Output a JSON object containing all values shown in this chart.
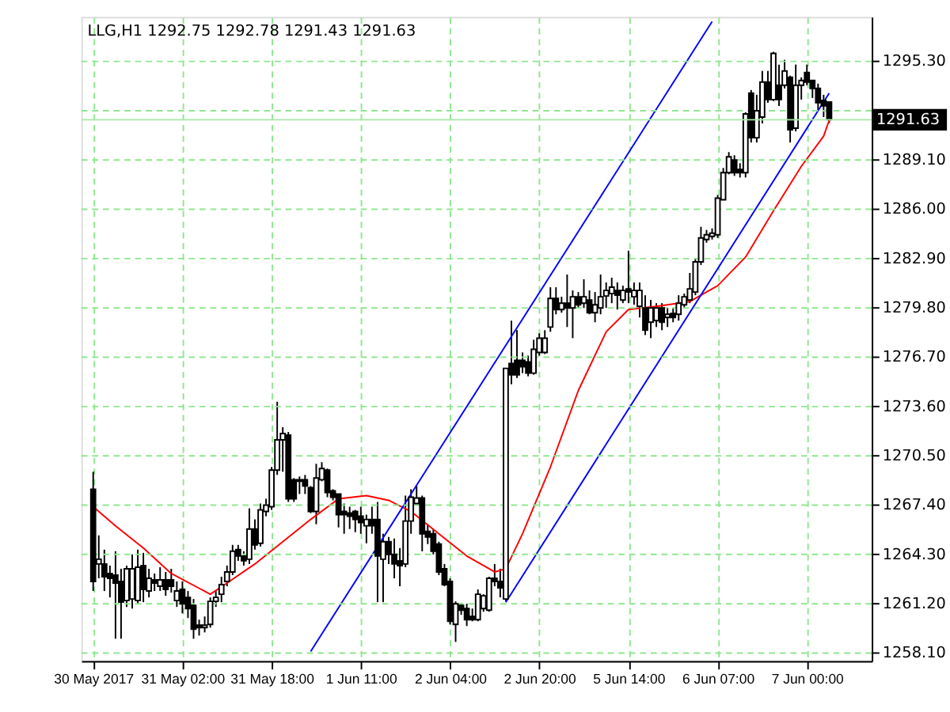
{
  "chart_data": {
    "type": "candlestick",
    "title": "LLG,H1 1292.75 1292.78 1291.43 1291.63",
    "categories": [
      "30 May 2017",
      null,
      null,
      null,
      null,
      null,
      null,
      null,
      null,
      null,
      null,
      null,
      null,
      null,
      null,
      null,
      "31 May 02:00",
      null,
      null,
      null,
      null,
      null,
      null,
      null,
      null,
      null,
      null,
      null,
      null,
      null,
      null,
      null,
      "31 May 18:00",
      null,
      null,
      null,
      null,
      null,
      null,
      null,
      null,
      null,
      null,
      null,
      null,
      null,
      null,
      null,
      "1 Jun 11:00",
      null,
      null,
      null,
      null,
      null,
      null,
      null,
      null,
      null,
      null,
      null,
      null,
      null,
      null,
      null,
      "2 Jun 04:00",
      null,
      null,
      null,
      null,
      null,
      null,
      null,
      null,
      null,
      null,
      null,
      null,
      null,
      null,
      null,
      "2 Jun 20:00",
      null,
      null,
      null,
      null,
      null,
      null,
      null,
      null,
      null,
      null,
      null,
      null,
      null,
      null,
      null,
      "5 Jun 14:00",
      null,
      null,
      null,
      null,
      null,
      null,
      null,
      null,
      null,
      null,
      null,
      null,
      null,
      null,
      null,
      "6 Jun 07:00",
      null,
      null,
      null,
      null,
      null,
      null,
      null,
      null,
      null,
      null,
      null,
      null,
      null,
      null,
      null,
      "7 Jun 00:00",
      null,
      null,
      null,
      null
    ],
    "ohlc": [
      [
        1268.4,
        1269.5,
        1262.0,
        1262.6
      ],
      [
        1263.7,
        1265.5,
        1262.8,
        1264.0
      ],
      [
        1263.7,
        1264.6,
        1262.0,
        1262.9
      ],
      [
        1263.1,
        1263.6,
        1261.6,
        1262.8
      ],
      [
        1263.0,
        1264.5,
        1259.0,
        1262.5
      ],
      [
        1262.6,
        1263.4,
        1259.0,
        1261.3
      ],
      [
        1261.4,
        1263.6,
        1261.0,
        1263.4
      ],
      [
        1261.5,
        1264.3,
        1260.9,
        1263.4
      ],
      [
        1261.4,
        1264.6,
        1261.2,
        1263.5
      ],
      [
        1263.6,
        1264.4,
        1261.3,
        1262.1
      ],
      [
        1262.0,
        1263.4,
        1261.6,
        1262.8
      ],
      [
        1262.7,
        1263.1,
        1262.0,
        1262.5
      ],
      [
        1262.3,
        1263.5,
        1262.0,
        1262.7
      ],
      [
        1262.7,
        1263.2,
        1261.7,
        1262.1
      ],
      [
        1262.7,
        1263.4,
        1261.9,
        1262.3
      ],
      [
        1261.4,
        1262.6,
        1261.0,
        1262.0
      ],
      [
        1262.1,
        1262.6,
        1260.6,
        1261.2
      ],
      [
        1261.6,
        1262.0,
        1260.3,
        1260.9
      ],
      [
        1261.1,
        1261.5,
        1259.0,
        1259.6
      ],
      [
        1259.85,
        1260.2,
        1259.2,
        1259.7
      ],
      [
        1259.7,
        1260.4,
        1259.4,
        1259.85
      ],
      [
        1259.9,
        1261.6,
        1259.7,
        1261.35
      ],
      [
        1261.35,
        1262.0,
        1261.0,
        1261.6
      ],
      [
        1261.8,
        1262.9,
        1261.3,
        1262.4
      ],
      [
        1262.6,
        1263.6,
        1262.3,
        1263.2
      ],
      [
        1263.2,
        1264.9,
        1263.0,
        1264.5
      ],
      [
        1264.6,
        1264.9,
        1263.9,
        1264.2
      ],
      [
        1264.2,
        1264.5,
        1263.6,
        1263.9
      ],
      [
        1264.0,
        1267.2,
        1263.7,
        1265.9
      ],
      [
        1265.9,
        1266.5,
        1264.6,
        1264.9
      ],
      [
        1265.0,
        1267.5,
        1264.8,
        1267.1
      ],
      [
        1267.0,
        1267.8,
        1266.7,
        1267.4
      ],
      [
        1267.3,
        1269.8,
        1267.1,
        1269.6
      ],
      [
        1269.6,
        1273.9,
        1269.3,
        1271.5
      ],
      [
        1271.5,
        1272.3,
        1269.5,
        1271.9
      ],
      [
        1271.8,
        1272.0,
        1267.6,
        1267.8
      ],
      [
        1269.0,
        1269.1,
        1267.6,
        1267.8
      ],
      [
        1269.0,
        1269.2,
        1268.1,
        1268.9
      ],
      [
        1269.0,
        1269.3,
        1268.1,
        1268.6
      ],
      [
        1268.5,
        1268.6,
        1266.9,
        1267.0
      ],
      [
        1267.0,
        1270.0,
        1266.2,
        1269.1
      ],
      [
        1269.0,
        1270.1,
        1268.9,
        1269.7
      ],
      [
        1269.6,
        1269.7,
        1267.9,
        1268.2
      ],
      [
        1268.3,
        1268.4,
        1267.7,
        1267.9
      ],
      [
        1268.1,
        1268.1,
        1266.0,
        1266.8
      ],
      [
        1267.0,
        1267.5,
        1265.6,
        1266.8
      ],
      [
        1266.9,
        1267.3,
        1265.9,
        1266.7
      ],
      [
        1267.0,
        1267.1,
        1265.7,
        1266.5
      ],
      [
        1266.7,
        1267.3,
        1265.6,
        1266.3
      ],
      [
        1266.1,
        1266.8,
        1265.0,
        1266.5
      ],
      [
        1266.5,
        1267.3,
        1265.6,
        1266.1
      ],
      [
        1266.5,
        1267.6,
        1261.3,
        1264.2
      ],
      [
        1264.0,
        1265.6,
        1261.3,
        1265.1
      ],
      [
        1265.1,
        1265.4,
        1263.7,
        1264.3
      ],
      [
        1264.3,
        1265.3,
        1262.8,
        1263.7
      ],
      [
        1263.9,
        1264.7,
        1262.3,
        1263.6
      ],
      [
        1263.7,
        1268.0,
        1263.5,
        1266.4
      ],
      [
        1266.4,
        1268.4,
        1265.6,
        1267.9
      ],
      [
        1267.5,
        1268.6,
        1267.5,
        1267.85
      ],
      [
        1267.85,
        1268.0,
        1264.5,
        1265.6
      ],
      [
        1265.75,
        1266.2,
        1264.95,
        1265.4
      ],
      [
        1265.6,
        1265.9,
        1264.3,
        1264.5
      ],
      [
        1264.95,
        1265.1,
        1263.0,
        1263.2
      ],
      [
        1263.4,
        1263.7,
        1262.3,
        1262.4
      ],
      [
        1262.6,
        1262.8,
        1259.9,
        1260.1
      ],
      [
        1259.9,
        1261.35,
        1258.8,
        1261.2
      ],
      [
        1261.1,
        1261.25,
        1260.5,
        1260.8
      ],
      [
        1260.9,
        1261.2,
        1259.8,
        1260.2
      ],
      [
        1260.4,
        1260.9,
        1260.1,
        1260.2
      ],
      [
        1260.2,
        1262.1,
        1260.1,
        1261.8
      ],
      [
        1260.9,
        1261.8,
        1260.7,
        1261.7
      ],
      [
        1260.8,
        1262.9,
        1260.7,
        1262.8
      ],
      [
        1262.8,
        1263.7,
        1262.3,
        1262.6
      ],
      [
        1262.6,
        1263.4,
        1261.6,
        1262.2
      ],
      [
        1261.5,
        1276.0,
        1261.35,
        1276.0
      ],
      [
        1276.3,
        1279.0,
        1275.0,
        1275.6
      ],
      [
        1276.5,
        1278.4,
        1275.4,
        1275.6
      ],
      [
        1276.5,
        1277.0,
        1275.7,
        1276.1
      ],
      [
        1276.4,
        1276.8,
        1275.5,
        1275.7
      ],
      [
        1275.7,
        1277.8,
        1275.6,
        1277.2
      ],
      [
        1277.0,
        1278.2,
        1276.8,
        1277.9
      ],
      [
        1277.0,
        1278.4,
        1276.9,
        1277.9
      ],
      [
        1278.6,
        1281.1,
        1278.3,
        1280.4
      ],
      [
        1280.4,
        1281.1,
        1279.4,
        1279.7
      ],
      [
        1279.7,
        1280.5,
        1279.5,
        1280.1
      ],
      [
        1280.1,
        1281.9,
        1278.6,
        1279.8
      ],
      [
        1279.8,
        1280.9,
        1277.9,
        1280.5
      ],
      [
        1280.5,
        1280.8,
        1279.8,
        1280.0
      ],
      [
        1280.1,
        1281.6,
        1279.8,
        1280.5
      ],
      [
        1280.3,
        1280.9,
        1279.4,
        1279.5
      ],
      [
        1279.5,
        1280.8,
        1278.9,
        1280.0
      ],
      [
        1279.8,
        1281.9,
        1279.4,
        1280.5
      ],
      [
        1280.55,
        1281.4,
        1279.8,
        1280.9
      ],
      [
        1280.7,
        1281.7,
        1280.1,
        1281.1
      ],
      [
        1280.9,
        1281.4,
        1279.7,
        1280.6
      ],
      [
        1280.3,
        1281.2,
        1280.1,
        1280.9
      ],
      [
        1281.0,
        1283.4,
        1280.1,
        1280.8
      ],
      [
        1280.5,
        1281.4,
        1280.0,
        1280.9
      ],
      [
        1279.9,
        1281.4,
        1279.2,
        1280.9
      ],
      [
        1279.8,
        1280.6,
        1278.1,
        1278.4
      ],
      [
        1278.9,
        1280.3,
        1277.9,
        1279.8
      ],
      [
        1279.0,
        1280.1,
        1278.6,
        1279.8
      ],
      [
        1279.8,
        1280.1,
        1278.4,
        1278.9
      ],
      [
        1279.2,
        1279.8,
        1278.6,
        1279.4
      ],
      [
        1279.45,
        1279.8,
        1278.9,
        1279.2
      ],
      [
        1279.4,
        1280.6,
        1279.0,
        1280.1
      ],
      [
        1280.0,
        1280.7,
        1279.8,
        1280.5
      ],
      [
        1280.3,
        1282.0,
        1280.1,
        1281.0
      ],
      [
        1280.8,
        1282.9,
        1280.6,
        1282.7
      ],
      [
        1282.7,
        1284.9,
        1282.5,
        1284.2
      ],
      [
        1284.1,
        1284.7,
        1283.9,
        1284.4
      ],
      [
        1284.3,
        1284.8,
        1284.1,
        1284.5
      ],
      [
        1284.4,
        1286.9,
        1284.2,
        1286.7
      ],
      [
        1286.6,
        1288.6,
        1286.6,
        1288.3
      ],
      [
        1288.3,
        1289.6,
        1288.2,
        1289.3
      ],
      [
        1289.1,
        1289.4,
        1288.1,
        1288.3
      ],
      [
        1288.5,
        1288.9,
        1288.0,
        1288.3
      ],
      [
        1288.3,
        1292.1,
        1288.0,
        1292.0
      ],
      [
        1293.3,
        1293.5,
        1290.2,
        1290.5
      ],
      [
        1290.5,
        1293.2,
        1290.2,
        1292.2
      ],
      [
        1291.8,
        1294.7,
        1291.4,
        1294.0
      ],
      [
        1294.0,
        1294.7,
        1292.7,
        1292.9
      ],
      [
        1292.9,
        1295.9,
        1292.8,
        1295.8
      ],
      [
        1293.8,
        1295.1,
        1292.5,
        1292.9
      ],
      [
        1293.8,
        1295.4,
        1293.6,
        1294.7
      ],
      [
        1294.3,
        1294.4,
        1290.2,
        1291.0
      ],
      [
        1291.1,
        1295.1,
        1290.9,
        1293.8
      ],
      [
        1293.8,
        1294.3,
        1292.9,
        1294.1
      ],
      [
        1294.6,
        1295.1,
        1293.8,
        1294.0
      ],
      [
        1294.1,
        1294.1,
        1293.0,
        1293.6
      ],
      [
        1293.6,
        1293.9,
        1292.2,
        1292.7
      ],
      [
        1292.85,
        1293.2,
        1291.8,
        1292.5
      ],
      [
        1292.75,
        1292.78,
        1291.43,
        1291.63
      ]
    ],
    "series": [
      {
        "type": "line",
        "color": "#ff0000",
        "values": [
          1267.3,
          null,
          null,
          null,
          1266.1,
          null,
          null,
          null,
          null,
          1264.7,
          null,
          null,
          null,
          null,
          1263.1,
          null,
          null,
          null,
          null,
          null,
          null,
          1261.8,
          null,
          null,
          1262.5,
          null,
          null,
          null,
          null,
          1263.7,
          null,
          null,
          null,
          null,
          1265.1,
          null,
          null,
          null,
          null,
          1266.5,
          null,
          null,
          null,
          null,
          1267.8,
          null,
          null,
          null,
          null,
          1268.0,
          null,
          null,
          null,
          1267.7,
          null,
          null,
          null,
          1267.0,
          null,
          null,
          null,
          null,
          1265.6,
          null,
          null,
          null,
          null,
          1264.2,
          null,
          null,
          null,
          null,
          1263.2,
          null,
          1263.4,
          null,
          null,
          1265.6,
          null,
          null,
          null,
          null,
          1269.8,
          null,
          null,
          null,
          null,
          1274.6,
          null,
          null,
          null,
          null,
          1278.3,
          null,
          null,
          null,
          1279.7,
          null,
          null,
          null,
          null,
          1279.9,
          null,
          null,
          null,
          null,
          null,
          1280.2,
          null,
          null,
          null,
          null,
          1281.2,
          null,
          null,
          null,
          null,
          1283.0,
          null,
          null,
          null,
          null,
          1285.9,
          null,
          null,
          null,
          null,
          1288.7,
          null,
          null,
          null,
          1290.6,
          1291.6
        ]
      },
      {
        "type": "line",
        "color": "#0000ff",
        "values": [
          null,
          null,
          null,
          null,
          null,
          null,
          null,
          null,
          null,
          null,
          null,
          null,
          null,
          null,
          null,
          null,
          null,
          null,
          null,
          null,
          null,
          null,
          null,
          null,
          null,
          null,
          null,
          null,
          null,
          null,
          null,
          null,
          null,
          null,
          null,
          null,
          null,
          null,
          null,
          1258.2,
          null,
          null,
          null,
          null,
          null,
          null,
          null,
          null,
          null,
          null,
          null,
          null,
          null,
          null,
          null,
          null,
          null,
          null,
          null,
          null,
          null,
          null,
          null,
          null,
          null,
          null,
          null,
          null,
          null,
          null,
          null,
          null,
          null,
          null,
          null,
          null,
          null,
          null,
          null,
          null,
          null,
          null,
          null,
          null,
          null,
          null,
          null,
          null,
          null,
          null,
          null,
          null,
          null,
          null,
          null,
          null,
          null,
          null,
          null,
          null,
          null,
          null,
          null,
          null,
          null,
          null,
          null,
          null,
          null,
          null,
          null,
          1297.8,
          null,
          null,
          null,
          null,
          null,
          null,
          null,
          null,
          null,
          null,
          null,
          null,
          null,
          null,
          null,
          null,
          null,
          null,
          null,
          null,
          null
        ]
      },
      {
        "type": "line",
        "color": "#0000ff",
        "values": [
          null,
          null,
          null,
          null,
          null,
          null,
          null,
          null,
          null,
          null,
          null,
          null,
          null,
          null,
          null,
          null,
          null,
          null,
          null,
          null,
          null,
          null,
          null,
          null,
          null,
          null,
          null,
          null,
          null,
          null,
          null,
          null,
          null,
          null,
          null,
          null,
          null,
          null,
          null,
          null,
          null,
          null,
          null,
          null,
          null,
          null,
          null,
          null,
          null,
          null,
          null,
          null,
          null,
          null,
          null,
          null,
          null,
          null,
          null,
          null,
          null,
          null,
          null,
          null,
          null,
          null,
          null,
          null,
          null,
          null,
          null,
          null,
          null,
          null,
          1261.3,
          null,
          null,
          null,
          null,
          null,
          null,
          null,
          null,
          null,
          null,
          null,
          null,
          null,
          null,
          null,
          null,
          null,
          null,
          null,
          null,
          null,
          null,
          null,
          null,
          null,
          null,
          null,
          null,
          null,
          null,
          null,
          null,
          null,
          null,
          null,
          null,
          null,
          null,
          null,
          null,
          null,
          null,
          null,
          null,
          null,
          null,
          null,
          null,
          null,
          null,
          null,
          null,
          null,
          null,
          null,
          null,
          null,
          1293.3
        ]
      }
    ],
    "ylim": [
      1257.6,
      1298.1
    ],
    "yticks": [
      {
        "value": 1258.1,
        "label": "1258.10"
      },
      {
        "value": 1261.2,
        "label": "1261.20"
      },
      {
        "value": 1264.3,
        "label": "1264.30"
      },
      {
        "value": 1267.4,
        "label": "1267.40"
      },
      {
        "value": 1270.5,
        "label": "1270.50"
      },
      {
        "value": 1273.6,
        "label": "1273.60"
      },
      {
        "value": 1276.7,
        "label": "1276.70"
      },
      {
        "value": 1279.8,
        "label": "1279.80"
      },
      {
        "value": 1282.9,
        "label": "1282.90"
      },
      {
        "value": 1286.0,
        "label": "1286.00"
      },
      {
        "value": 1289.1,
        "label": "1289.10"
      },
      {
        "value": 1292.2,
        "label": null
      },
      {
        "value": 1295.3,
        "label": "1295.30"
      }
    ],
    "grid": true,
    "ref_lines": [
      {
        "axis": "y",
        "value": 1291.63,
        "label": "1291.63",
        "color": "#a8e8a8"
      }
    ]
  }
}
